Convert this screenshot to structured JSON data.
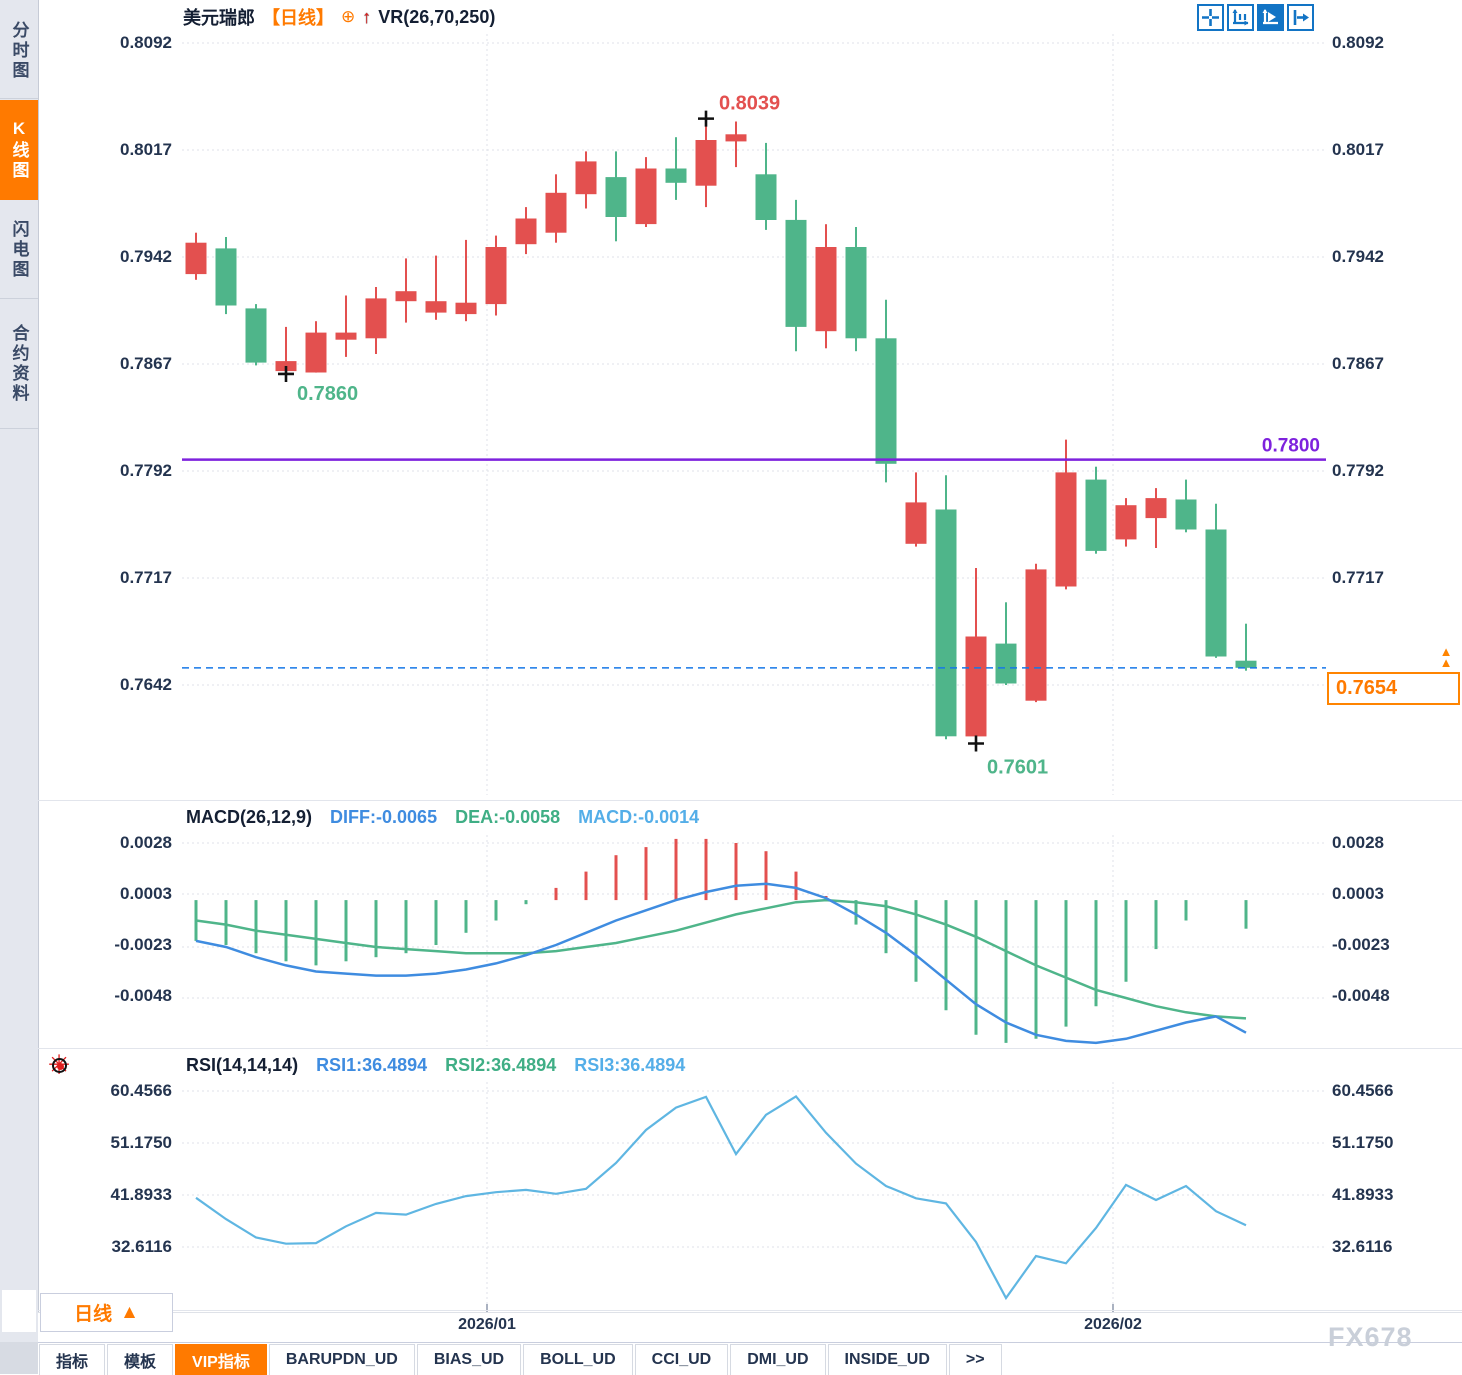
{
  "header": {
    "symbol": "美元瑞郎",
    "period_tag": "【日线】",
    "overlay_indicator": "VR(26,70,250)"
  },
  "sidebar": {
    "items": [
      {
        "label": "分时图",
        "active": false
      },
      {
        "label": "K线图",
        "active": true
      },
      {
        "label": "闪电图",
        "active": false
      },
      {
        "label": "合约资料",
        "active": false
      }
    ]
  },
  "toolbar": {
    "icons": [
      {
        "name": "crosshair-move-icon",
        "active": false
      },
      {
        "name": "axis-scale-icon",
        "active": false
      },
      {
        "name": "auto-scale-icon",
        "active": true
      },
      {
        "name": "go-to-latest-icon",
        "active": false
      }
    ]
  },
  "macd_header": {
    "name": "MACD(26,12,9)",
    "diff": "DIFF:-0.0065",
    "dea": "DEA:-0.0058",
    "macd": "MACD:-0.0014"
  },
  "rsi_header": {
    "name": "RSI(14,14,14)",
    "rsi1": "RSI1:36.4894",
    "rsi2": "RSI2:36.4894",
    "rsi3": "RSI3:36.4894"
  },
  "bottom": {
    "period_button": "日线",
    "period_arrow": "▲",
    "tabs": [
      {
        "label": "指标",
        "active": false
      },
      {
        "label": "模板",
        "active": false
      },
      {
        "label": "VIP指标",
        "active": true
      },
      {
        "label": "BARUPDN_UD",
        "active": false
      },
      {
        "label": "BIAS_UD",
        "active": false
      },
      {
        "label": "BOLL_UD",
        "active": false
      },
      {
        "label": "CCI_UD",
        "active": false
      },
      {
        "label": "DMI_UD",
        "active": false
      },
      {
        "label": "INSIDE_UD",
        "active": false
      },
      {
        "label": ">>",
        "active": false
      }
    ],
    "watermark": "FX678"
  },
  "colors": {
    "up": "#e3504f",
    "down": "#4fb58a",
    "diff_line": "#3f8ce0",
    "dea_line": "#4fb58a",
    "rsi_line": "#5fb6e2",
    "hline_purple": "#7e22dd",
    "current_dashed": "#1678e8",
    "accent_orange": "#ff7a00",
    "axis_text": "#24344f",
    "grid": "#dfe2e8"
  },
  "chart_data": {
    "type": "candlestick",
    "title": "美元瑞郎 日线 (USD/CHF daily)",
    "candle_format": "[open, close, high, low]",
    "price_axis": {
      "labels": [
        "0.8092",
        "0.8017",
        "0.7942",
        "0.7867",
        "0.7792",
        "0.7717",
        "0.7642"
      ],
      "values": [
        0.8092,
        0.8017,
        0.7942,
        0.7867,
        0.7792,
        0.7717,
        0.7642
      ]
    },
    "macd_axis": {
      "labels": [
        "0.0028",
        "0.0003",
        "-0.0023",
        "-0.0048"
      ],
      "values": [
        0.0028,
        0.0003,
        -0.0023,
        -0.0048
      ]
    },
    "rsi_axis": {
      "labels": [
        "60.4566",
        "51.1750",
        "41.8933",
        "32.6116"
      ],
      "values": [
        60.4566,
        51.175,
        41.8933,
        32.6116
      ]
    },
    "x_labels": [
      "2026/01",
      "2026/02"
    ],
    "candles": [
      [
        0.793,
        0.7952,
        0.7959,
        0.7926
      ],
      [
        0.7948,
        0.7908,
        0.7956,
        0.7902
      ],
      [
        0.7906,
        0.7868,
        0.7909,
        0.7866
      ],
      [
        0.7862,
        0.7869,
        0.7893,
        0.786
      ],
      [
        0.7861,
        0.7889,
        0.7897,
        0.7861
      ],
      [
        0.7884,
        0.7889,
        0.7915,
        0.7872
      ],
      [
        0.7885,
        0.7913,
        0.7921,
        0.7874
      ],
      [
        0.7911,
        0.7918,
        0.7941,
        0.7896
      ],
      [
        0.7903,
        0.7911,
        0.7943,
        0.7898
      ],
      [
        0.7902,
        0.791,
        0.7954,
        0.7897
      ],
      [
        0.7909,
        0.7949,
        0.7957,
        0.7901
      ],
      [
        0.7951,
        0.7969,
        0.7977,
        0.7944
      ],
      [
        0.7959,
        0.7987,
        0.8,
        0.7952
      ],
      [
        0.7986,
        0.8009,
        0.8016,
        0.7976
      ],
      [
        0.7998,
        0.797,
        0.8016,
        0.7953
      ],
      [
        0.7965,
        0.8004,
        0.8012,
        0.7963
      ],
      [
        0.8004,
        0.7994,
        0.8026,
        0.7982
      ],
      [
        0.7992,
        0.8024,
        0.8039,
        0.7977
      ],
      [
        0.8023,
        0.8028,
        0.8037,
        0.8005
      ],
      [
        0.8,
        0.7968,
        0.8022,
        0.7961
      ],
      [
        0.7968,
        0.7893,
        0.7982,
        0.7876
      ],
      [
        0.789,
        0.7949,
        0.7965,
        0.7878
      ],
      [
        0.7949,
        0.7885,
        0.7963,
        0.7876
      ],
      [
        0.7885,
        0.7797,
        0.7912,
        0.7784
      ],
      [
        0.7741,
        0.777,
        0.7791,
        0.7739
      ],
      [
        0.7765,
        0.7606,
        0.7789,
        0.7604
      ],
      [
        0.7606,
        0.7676,
        0.7724,
        0.7601
      ],
      [
        0.7671,
        0.7643,
        0.77,
        0.7642
      ],
      [
        0.7631,
        0.7723,
        0.7727,
        0.763
      ],
      [
        0.7711,
        0.7791,
        0.7814,
        0.7709
      ],
      [
        0.7786,
        0.7736,
        0.7795,
        0.7734
      ],
      [
        0.7744,
        0.7768,
        0.7773,
        0.7739
      ],
      [
        0.7759,
        0.7773,
        0.778,
        0.7738
      ],
      [
        0.7772,
        0.7751,
        0.7786,
        0.7749
      ],
      [
        0.7751,
        0.7662,
        0.7769,
        0.7661
      ],
      [
        0.7659,
        0.7654,
        0.7685,
        0.7652
      ]
    ],
    "macd": {
      "diff": [
        -0.002,
        -0.0023,
        -0.0028,
        -0.0032,
        -0.0035,
        -0.0036,
        -0.0037,
        -0.0037,
        -0.0036,
        -0.0034,
        -0.0031,
        -0.0027,
        -0.0022,
        -0.0016,
        -0.001,
        -0.0005,
        0.0,
        0.0004,
        0.0007,
        0.0008,
        0.0006,
        0.0001,
        -0.0007,
        -0.0016,
        -0.0027,
        -0.0039,
        -0.0051,
        -0.006,
        -0.0066,
        -0.0069,
        -0.007,
        -0.0068,
        -0.0064,
        -0.006,
        -0.0057,
        -0.0065
      ],
      "dea": [
        -0.001,
        -0.0012,
        -0.0015,
        -0.0017,
        -0.0019,
        -0.0021,
        -0.0023,
        -0.0024,
        -0.0025,
        -0.0026,
        -0.0026,
        -0.0026,
        -0.0025,
        -0.0023,
        -0.0021,
        -0.0018,
        -0.0015,
        -0.0011,
        -0.0007,
        -0.0004,
        -0.0001,
        0.0,
        -0.0001,
        -0.0003,
        -0.0007,
        -0.0012,
        -0.0018,
        -0.0025,
        -0.0032,
        -0.0038,
        -0.0044,
        -0.0048,
        -0.0052,
        -0.0055,
        -0.0057,
        -0.0058
      ]
    },
    "rsi": [
      41.4,
      37.6,
      34.3,
      33.2,
      33.3,
      36.3,
      38.7,
      38.4,
      40.3,
      41.7,
      42.4,
      42.8,
      42.1,
      43.0,
      47.6,
      53.5,
      57.5,
      59.4,
      49.2,
      56.2,
      59.5,
      53.0,
      47.5,
      43.5,
      41.3,
      40.4,
      33.5,
      23.5,
      31.0,
      29.7,
      36.0,
      43.7,
      41.0,
      43.5,
      39.0,
      36.5
    ],
    "annotations": {
      "high_marker": {
        "text": "0.8039",
        "price": 0.8039,
        "index": 17
      },
      "low_marker_1": {
        "text": "0.7860",
        "price": 0.786,
        "index": 3
      },
      "low_marker_2": {
        "text": "0.7601",
        "price": 0.7601,
        "index": 26
      },
      "horizontal_line": {
        "text": "0.7800",
        "price": 0.78
      },
      "current_price": {
        "text": "0.7654",
        "price": 0.7654
      }
    }
  }
}
